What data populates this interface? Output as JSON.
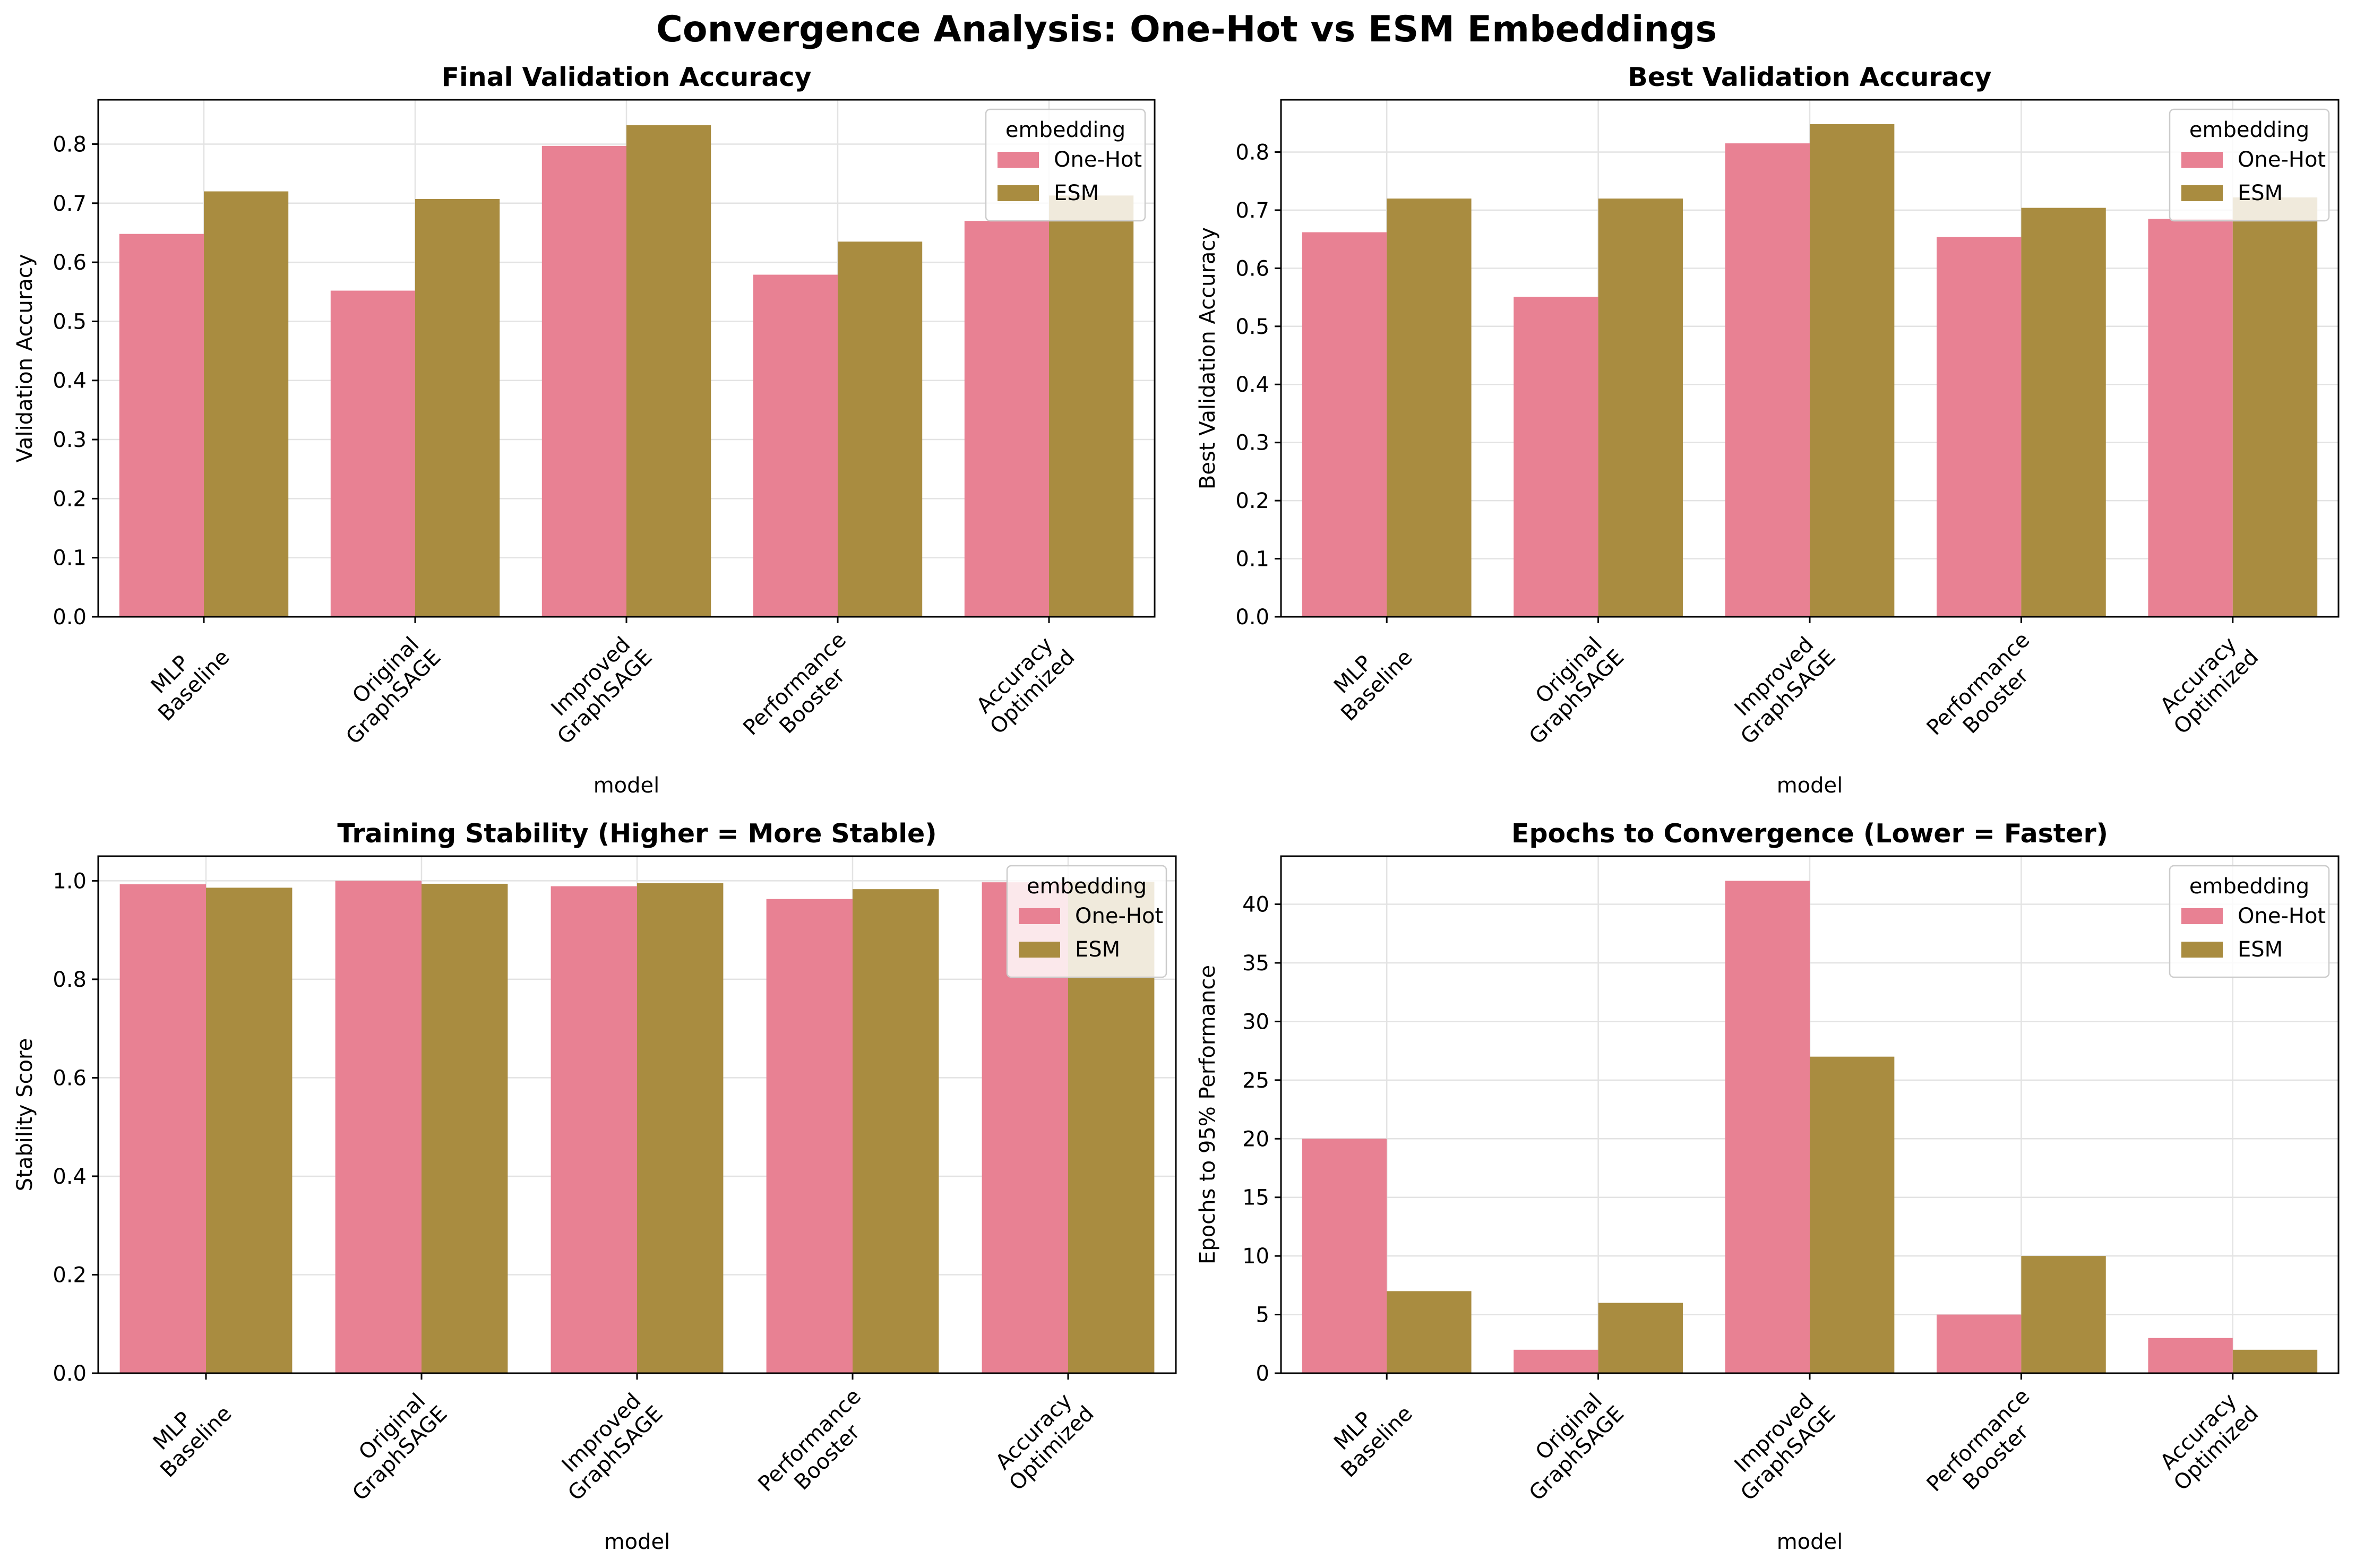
{
  "figure_title": "Convergence Analysis: One-Hot vs ESM Embeddings",
  "colors": {
    "One-Hot": "#e88193",
    "ESM": "#a98c40"
  },
  "chart_data": [
    {
      "type": "bar",
      "title": "Final Validation Accuracy",
      "xlabel": "model",
      "ylabel": "Validation Accuracy",
      "ylim": [
        0,
        0.875
      ],
      "yticks": [
        0.0,
        0.1,
        0.2,
        0.3,
        0.4,
        0.5,
        0.6,
        0.7,
        0.8
      ],
      "tick_decimals": 1,
      "grid": true,
      "legend_title": "embedding",
      "legend_position": "top-right",
      "categories": [
        "MLP\nBaseline",
        "Original\nGraphSAGE",
        "Improved\nGraphSAGE",
        "Performance\nBooster",
        "Accuracy\nOptimized"
      ],
      "series": [
        {
          "name": "One-Hot",
          "values": [
            0.648,
            0.552,
            0.797,
            0.579,
            0.67
          ]
        },
        {
          "name": "ESM",
          "values": [
            0.72,
            0.707,
            0.832,
            0.635,
            0.713
          ]
        }
      ]
    },
    {
      "type": "bar",
      "title": "Best Validation Accuracy",
      "xlabel": "model",
      "ylabel": "Best Validation Accuracy",
      "ylim": [
        0,
        0.89
      ],
      "yticks": [
        0.0,
        0.1,
        0.2,
        0.3,
        0.4,
        0.5,
        0.6,
        0.7,
        0.8
      ],
      "tick_decimals": 1,
      "grid": true,
      "legend_title": "embedding",
      "legend_position": "top-right",
      "categories": [
        "MLP\nBaseline",
        "Original\nGraphSAGE",
        "Improved\nGraphSAGE",
        "Performance\nBooster",
        "Accuracy\nOptimized"
      ],
      "series": [
        {
          "name": "One-Hot",
          "values": [
            0.662,
            0.551,
            0.815,
            0.654,
            0.685
          ]
        },
        {
          "name": "ESM",
          "values": [
            0.72,
            0.72,
            0.848,
            0.704,
            0.722
          ]
        }
      ]
    },
    {
      "type": "bar",
      "title": "Training Stability (Higher = More Stable)",
      "xlabel": "model",
      "ylabel": "Stability Score",
      "ylim": [
        0,
        1.05
      ],
      "yticks": [
        0.0,
        0.2,
        0.4,
        0.6,
        0.8,
        1.0
      ],
      "tick_decimals": 1,
      "grid": true,
      "legend_title": "embedding",
      "legend_position": "top-right",
      "categories": [
        "MLP\nBaseline",
        "Original\nGraphSAGE",
        "Improved\nGraphSAGE",
        "Performance\nBooster",
        "Accuracy\nOptimized"
      ],
      "series": [
        {
          "name": "One-Hot",
          "values": [
            0.993,
            1.0,
            0.989,
            0.963,
            0.997
          ]
        },
        {
          "name": "ESM",
          "values": [
            0.986,
            0.994,
            0.995,
            0.983,
            0.998
          ]
        }
      ]
    },
    {
      "type": "bar",
      "title": "Epochs to Convergence (Lower = Faster)",
      "xlabel": "model",
      "ylabel": "Epochs to 95% Performance",
      "ylim": [
        0,
        44.1
      ],
      "yticks": [
        0,
        5,
        10,
        15,
        20,
        25,
        30,
        35,
        40
      ],
      "tick_decimals": 0,
      "grid": true,
      "legend_title": "embedding",
      "legend_position": "top-right",
      "categories": [
        "MLP\nBaseline",
        "Original\nGraphSAGE",
        "Improved\nGraphSAGE",
        "Performance\nBooster",
        "Accuracy\nOptimized"
      ],
      "series": [
        {
          "name": "One-Hot",
          "values": [
            20,
            2,
            42,
            5,
            3
          ]
        },
        {
          "name": "ESM",
          "values": [
            7,
            6,
            27,
            10,
            2
          ]
        }
      ]
    }
  ]
}
